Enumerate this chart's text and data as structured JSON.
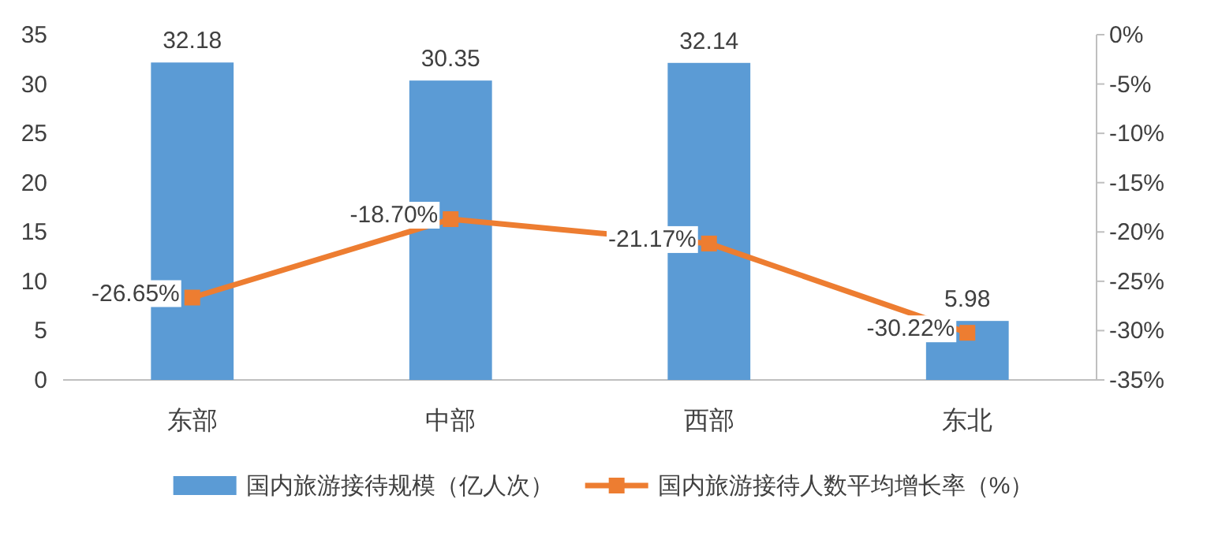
{
  "chart_data": {
    "type": "bar",
    "categories": [
      "东部",
      "中部",
      "西部",
      "东北"
    ],
    "series": [
      {
        "name": "国内旅游接待规模（亿人次）",
        "color": "#5b9bd5",
        "values": [
          32.18,
          30.35,
          32.14,
          5.98
        ],
        "value_labels": [
          "32.18",
          "30.35",
          "32.14",
          "5.98"
        ]
      },
      {
        "name": "国内旅游接待人数平均增长率（%）",
        "type": "line",
        "axis": "y2",
        "color": "#ed7d31",
        "marker": "square",
        "values": [
          -26.65,
          -18.7,
          -21.17,
          -30.22
        ],
        "value_labels": [
          "-26.65%",
          "-18.70%",
          "-21.17%",
          "-30.22%"
        ]
      }
    ],
    "ylim": [
      0,
      35
    ],
    "yticks": [
      0,
      5,
      10,
      15,
      20,
      25,
      30,
      35
    ],
    "y2lim": [
      -35,
      0
    ],
    "y2ticks": [
      {
        "value": 0,
        "label": "0%"
      },
      {
        "value": -5,
        "label": "-5%"
      },
      {
        "value": -10,
        "label": "-10%"
      },
      {
        "value": -15,
        "label": "-15%"
      },
      {
        "value": -20,
        "label": "-20%"
      },
      {
        "value": -25,
        "label": "-25%"
      },
      {
        "value": -30,
        "label": "-30%"
      },
      {
        "value": -35,
        "label": "-35%"
      }
    ],
    "legend": "bottom"
  }
}
